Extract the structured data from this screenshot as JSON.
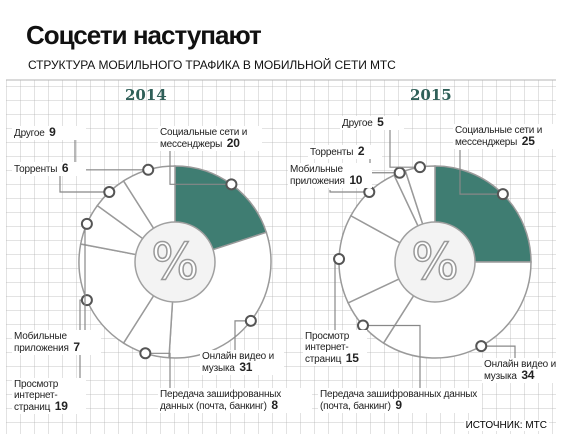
{
  "header": {
    "title": "Соцсети наступают",
    "subtitle": "СТРУКТУРА МОБИЛЬНОГО ТРАФИКА В МОБИЛЬНОЙ СЕТИ МТС",
    "source": "ИСТОЧНИК: МТС"
  },
  "chart_data": [
    {
      "type": "pie",
      "title": "2014",
      "center_label": "%",
      "categories": [
        "Социальные сети и мессенджеры",
        "Онлайн видео и музыка",
        "Передача зашифрованных данных (почта, банкинг)",
        "Просмотр интернет-страниц",
        "Мобильные приложения",
        "Торренты",
        "Другое"
      ],
      "values": [
        20,
        31,
        8,
        19,
        7,
        6,
        9
      ],
      "colors": [
        "#3f7d72",
        "#ffffff",
        "#ffffff",
        "#ffffff",
        "#ffffff",
        "#ffffff",
        "#ffffff"
      ]
    },
    {
      "type": "pie",
      "title": "2015",
      "center_label": "%",
      "categories": [
        "Социальные сети и мессенджеры",
        "Онлайн видео и музыка",
        "Передача зашифрованных данных (почта, банкинг)",
        "Просмотр интернет-страниц",
        "Мобильные приложения",
        "Торренты",
        "Другое"
      ],
      "values": [
        25,
        34,
        9,
        15,
        10,
        2,
        5
      ],
      "colors": [
        "#3f7d72",
        "#ffffff",
        "#ffffff",
        "#ffffff",
        "#ffffff",
        "#ffffff",
        "#ffffff"
      ]
    }
  ]
}
